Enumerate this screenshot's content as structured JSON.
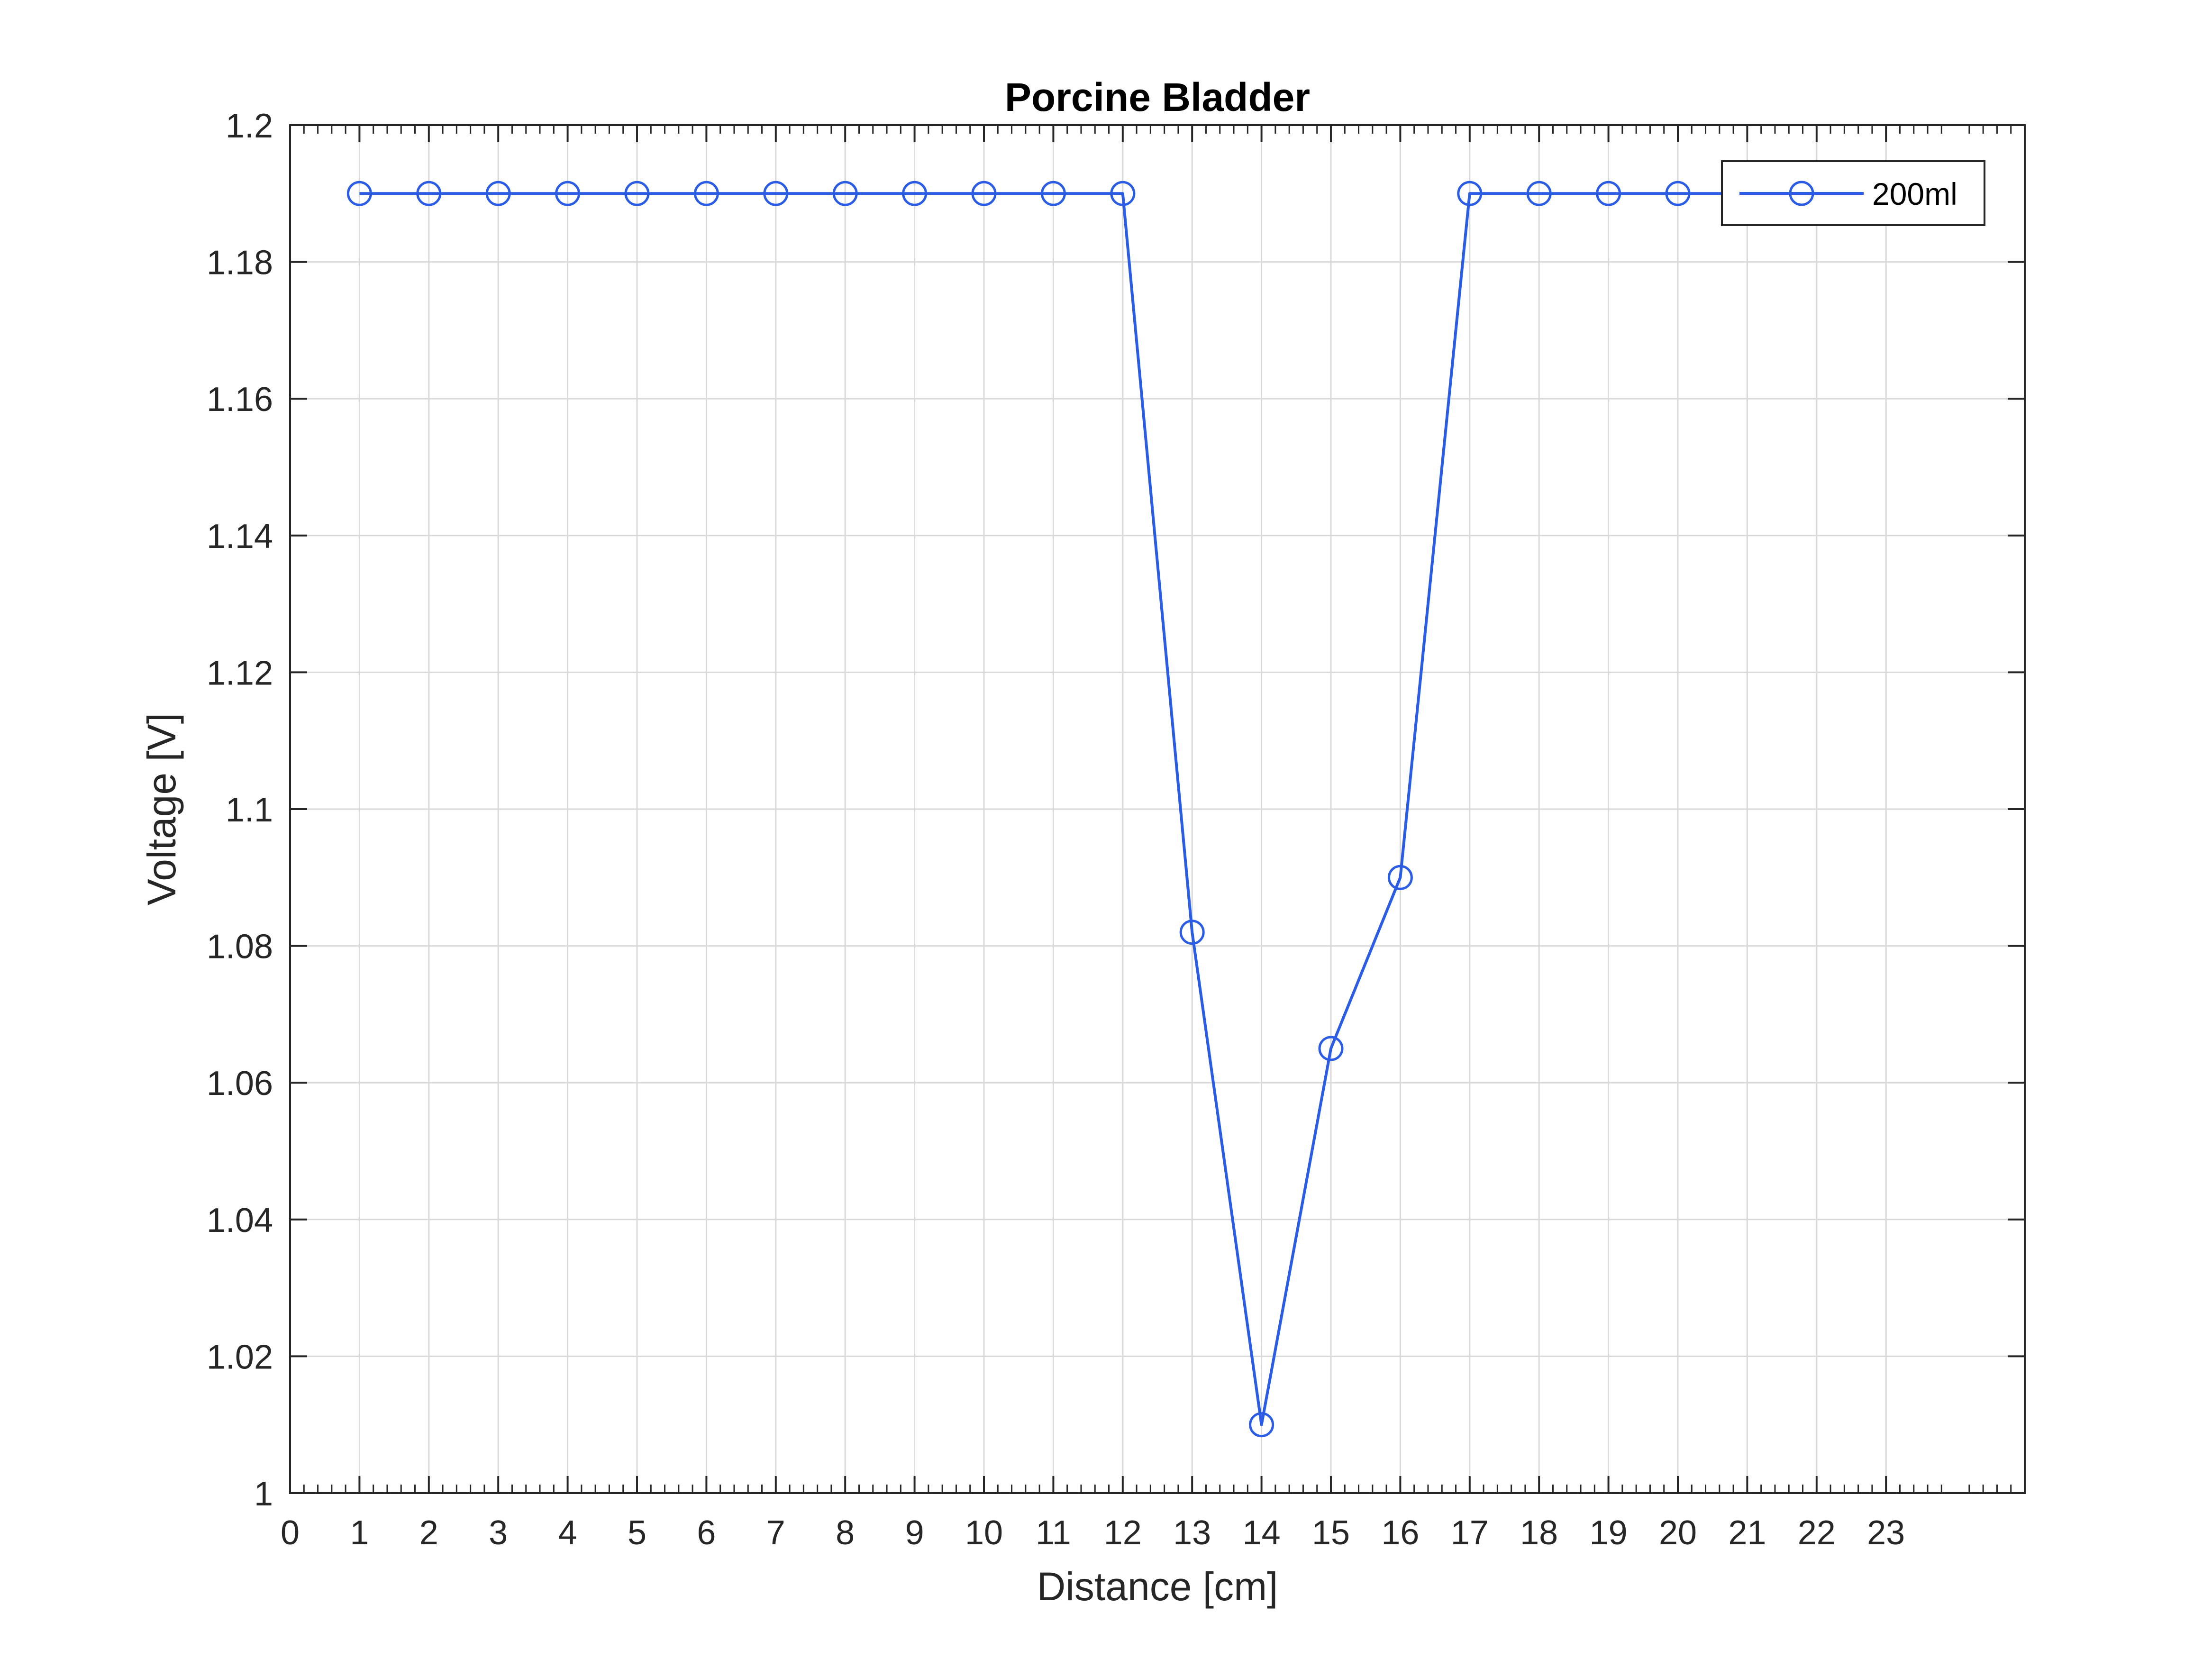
{
  "chart_data": {
    "type": "line",
    "title": "Porcine Bladder",
    "xlabel": "Distance [cm]",
    "ylabel": "Voltage [V]",
    "xlim": [
      0,
      25
    ],
    "ylim": [
      1,
      1.2
    ],
    "x_ticks": [
      "0",
      "1",
      "2",
      "3",
      "4",
      "5",
      "6",
      "7",
      "8",
      "9",
      "10",
      "11",
      "12",
      "13",
      "14",
      "15",
      "16",
      "17",
      "18",
      "19",
      "20",
      "21",
      "22",
      "23"
    ],
    "y_ticks": [
      "1",
      "1.02",
      "1.04",
      "1.06",
      "1.08",
      "1.1",
      "1.12",
      "1.14",
      "1.16",
      "1.18",
      "1.2"
    ],
    "grid": true,
    "minor_ticks": true,
    "legend_position": "top-right",
    "series": [
      {
        "name": "200ml",
        "color": "#2B5CE6",
        "marker": "circle",
        "x": [
          1,
          2,
          3,
          4,
          5,
          6,
          7,
          8,
          9,
          10,
          11,
          12,
          13,
          14,
          15,
          16,
          17,
          18,
          19,
          20,
          21,
          22
        ],
        "y": [
          1.19,
          1.19,
          1.19,
          1.19,
          1.19,
          1.19,
          1.19,
          1.19,
          1.19,
          1.19,
          1.19,
          1.19,
          1.082,
          1.01,
          1.065,
          1.09,
          1.19,
          1.19,
          1.19,
          1.19,
          1.19,
          1.19
        ]
      }
    ]
  }
}
